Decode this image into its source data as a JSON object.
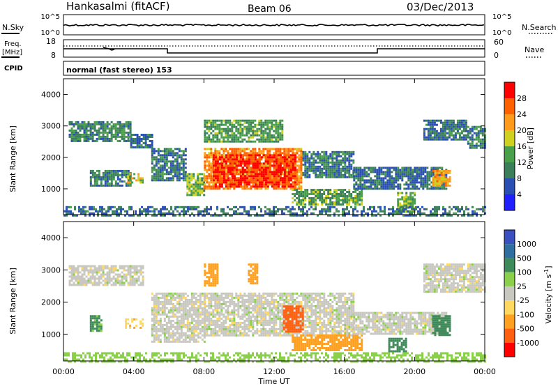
{
  "header": {
    "station": "Hankasalmi (fitACF)",
    "beam": "Beam 06",
    "date": "03/Dec/2013"
  },
  "panels": {
    "nsky": {
      "label": "N.Sky",
      "ticks": [
        "10^5",
        "10^0"
      ],
      "right_label": "N.Search",
      "right_ticks": [
        "10^5",
        "10^0"
      ]
    },
    "freq": {
      "label_line1": "Freq.",
      "label_line2": "[MHz]",
      "ticks": [
        "18",
        "8"
      ],
      "right_label": "Nave",
      "right_ticks": [
        "60",
        "0"
      ]
    },
    "cpid": {
      "label": "CPID",
      "mode": "normal (fast stereo) 153"
    }
  },
  "colors": {
    "power_scale": [
      "#1f1fff",
      "#2a4fb4",
      "#3a7f5a",
      "#4aa04a",
      "#d0d020",
      "#ff9a1a",
      "#ff6000",
      "#ff0000"
    ],
    "velocity_scale": [
      "#3a4fc0",
      "#2f6fa0",
      "#3f8a5a",
      "#8ad04a",
      "#c8c8c0",
      "#ffd860",
      "#ffa020",
      "#ff6010",
      "#ff0000"
    ]
  },
  "chart_data": [
    {
      "type": "heatmap",
      "title": "",
      "xlabel": "Time UT",
      "ylabel": "Slant Range [km]",
      "x_ticks": [
        "00:00",
        "04:00",
        "08:00",
        "12:00",
        "16:00",
        "20:00",
        "00:00"
      ],
      "y_ticks": [
        "1000",
        "2000",
        "3000",
        "4000"
      ],
      "xlim": [
        0,
        24
      ],
      "ylim": [
        180,
        4500
      ],
      "colorbar": {
        "label": "Power [dB]",
        "ticks": [
          "4",
          "8",
          "12",
          "16",
          "20",
          "24",
          "28"
        ],
        "range": [
          0,
          30
        ]
      },
      "regions": [
        {
          "t0": 0.3,
          "t1": 3.8,
          "r0": 2550,
          "r1": 3150,
          "value": 10
        },
        {
          "t0": 3.8,
          "t1": 5.0,
          "r0": 2350,
          "r1": 2750,
          "value": 8
        },
        {
          "t0": 5.0,
          "t1": 7.0,
          "r0": 1300,
          "r1": 2300,
          "value": 9
        },
        {
          "t0": 7.0,
          "t1": 8.0,
          "r0": 800,
          "r1": 1500,
          "value": 14
        },
        {
          "t0": 8.0,
          "t1": 13.6,
          "r0": 1000,
          "r1": 2300,
          "value": 22
        },
        {
          "t0": 8.5,
          "t1": 13.2,
          "r0": 1100,
          "r1": 2100,
          "value": 27
        },
        {
          "t0": 8.0,
          "t1": 12.5,
          "r0": 2500,
          "r1": 3200,
          "value": 12
        },
        {
          "t0": 13.6,
          "t1": 16.5,
          "r0": 1400,
          "r1": 2200,
          "value": 9
        },
        {
          "t0": 13.0,
          "t1": 17.0,
          "r0": 500,
          "r1": 1000,
          "value": 12
        },
        {
          "t0": 16.5,
          "t1": 21.8,
          "r0": 1000,
          "r1": 1700,
          "value": 8
        },
        {
          "t0": 21.0,
          "t1": 22.0,
          "r0": 1100,
          "r1": 1600,
          "value": 20
        },
        {
          "t0": 19.0,
          "t1": 20.0,
          "r0": 300,
          "r1": 900,
          "value": 14
        },
        {
          "t0": 1.5,
          "t1": 3.8,
          "r0": 1100,
          "r1": 1600,
          "value": 9
        },
        {
          "t0": 3.5,
          "t1": 4.5,
          "r0": 1200,
          "r1": 1500,
          "value": 16
        },
        {
          "t0": 20.5,
          "t1": 23.0,
          "r0": 2600,
          "r1": 3200,
          "value": 8
        },
        {
          "t0": 23.0,
          "t1": 24.0,
          "r0": 2300,
          "r1": 3000,
          "value": 10
        },
        {
          "t0": 0.0,
          "t1": 24.0,
          "r0": 180,
          "r1": 450,
          "value": 8
        }
      ]
    },
    {
      "type": "heatmap",
      "title": "",
      "xlabel": "Time UT",
      "ylabel": "Slant Range [km]",
      "x_ticks": [
        "00:00",
        "04:00",
        "08:00",
        "12:00",
        "16:00",
        "20:00",
        "00:00"
      ],
      "y_ticks": [
        "1000",
        "2000",
        "3000",
        "4000"
      ],
      "xlim": [
        0,
        24
      ],
      "ylim": [
        180,
        4500
      ],
      "colorbar": {
        "label": "Velocity [m s^-1]",
        "ticks": [
          "1000",
          "500",
          "100",
          "25",
          "-25",
          "-100",
          "-500",
          "-1000"
        ],
        "range": [
          -1000,
          1000
        ]
      },
      "regions": [
        {
          "t0": 0.3,
          "t1": 4.5,
          "r0": 2550,
          "r1": 3150,
          "value": 0
        },
        {
          "t0": 5.0,
          "t1": 8.0,
          "r0": 800,
          "r1": 2300,
          "value": 0
        },
        {
          "t0": 8.0,
          "t1": 16.5,
          "r0": 1000,
          "r1": 2300,
          "value": 0
        },
        {
          "t0": 8.0,
          "t1": 8.8,
          "r0": 2500,
          "r1": 3200,
          "value": -150
        },
        {
          "t0": 10.5,
          "t1": 11.0,
          "r0": 2600,
          "r1": 3200,
          "value": -200
        },
        {
          "t0": 12.5,
          "t1": 13.6,
          "r0": 1100,
          "r1": 1900,
          "value": -800
        },
        {
          "t0": 13.0,
          "t1": 17.0,
          "r0": 500,
          "r1": 1000,
          "value": -150
        },
        {
          "t0": 16.5,
          "t1": 21.8,
          "r0": 1000,
          "r1": 1700,
          "value": 0
        },
        {
          "t0": 21.0,
          "t1": 22.0,
          "r0": 1000,
          "r1": 1600,
          "value": 300
        },
        {
          "t0": 18.5,
          "t1": 19.5,
          "r0": 500,
          "r1": 900,
          "value": 300
        },
        {
          "t0": 1.5,
          "t1": 2.2,
          "r0": 1100,
          "r1": 1600,
          "value": 120
        },
        {
          "t0": 3.5,
          "t1": 4.5,
          "r0": 1200,
          "r1": 1500,
          "value": -80
        },
        {
          "t0": 20.5,
          "t1": 24.0,
          "r0": 2300,
          "r1": 3200,
          "value": 0
        },
        {
          "t0": 0.0,
          "t1": 24.0,
          "r0": 180,
          "r1": 450,
          "value": 60
        }
      ]
    }
  ]
}
